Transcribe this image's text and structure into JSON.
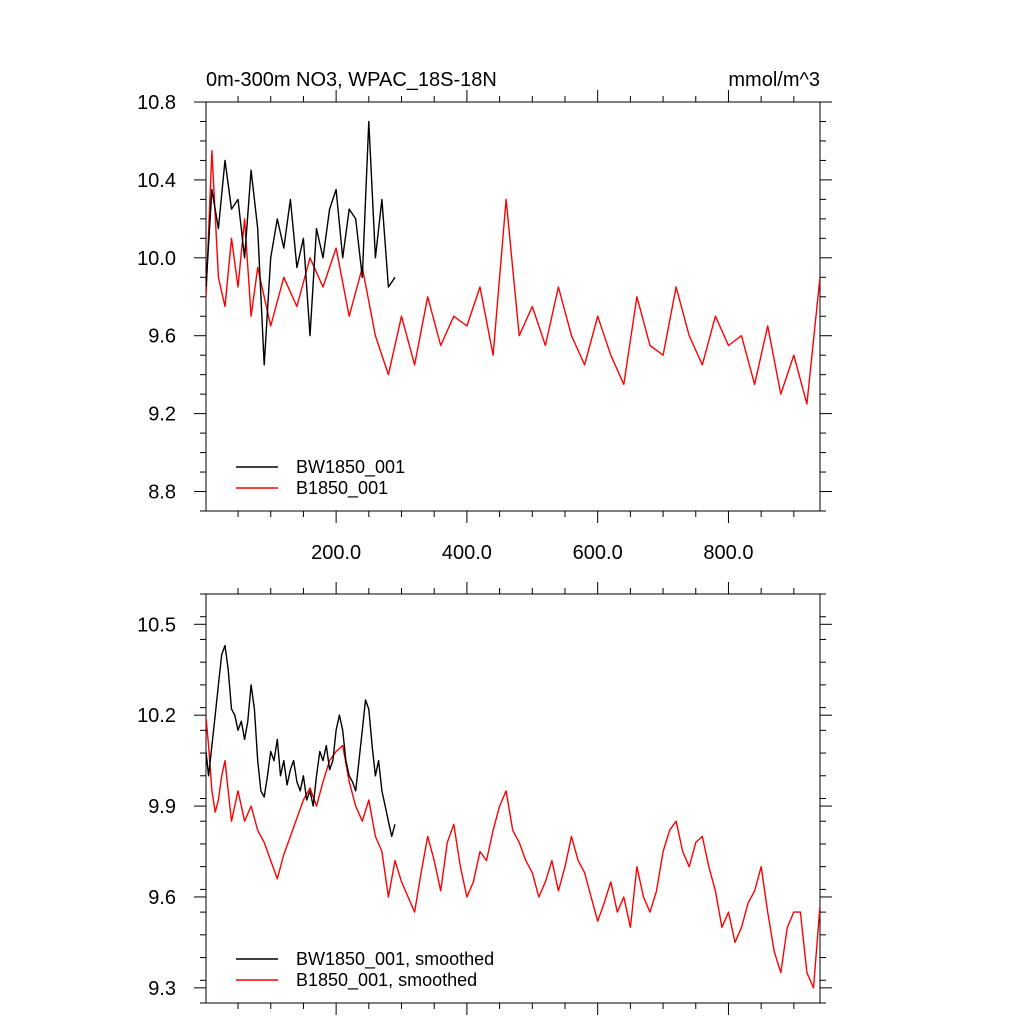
{
  "chart_data": [
    {
      "type": "line",
      "title": "0m-300m NO3, WPAC_18S-18N",
      "units": "mmol/m^3",
      "xlim": [
        1,
        940
      ],
      "ylim": [
        8.7,
        10.8
      ],
      "xticks": [
        200,
        400,
        600,
        800
      ],
      "xtick_labels": [
        "200.0",
        "400.0",
        "600.0",
        "800.0"
      ],
      "yticks": [
        8.8,
        9.2,
        9.6,
        10.0,
        10.4,
        10.8
      ],
      "ytick_labels": [
        "8.8",
        "9.2",
        "9.6",
        "10.0",
        "10.4",
        "10.8"
      ],
      "legend_position": "bottom-left",
      "series": [
        {
          "name": "BW1850_001",
          "color": "#000000",
          "x": [
            1,
            10,
            20,
            30,
            40,
            50,
            60,
            70,
            80,
            90,
            100,
            110,
            120,
            130,
            140,
            150,
            160,
            170,
            180,
            190,
            200,
            210,
            220,
            230,
            240,
            250,
            260,
            270,
            280,
            290
          ],
          "y": [
            9.85,
            10.35,
            10.15,
            10.5,
            10.25,
            10.3,
            10.0,
            10.45,
            10.15,
            9.45,
            10.0,
            10.2,
            10.05,
            10.3,
            9.95,
            10.1,
            9.6,
            10.15,
            10.0,
            10.25,
            10.35,
            10.0,
            10.25,
            10.2,
            9.9,
            10.7,
            10.0,
            10.3,
            9.85,
            9.9
          ]
        },
        {
          "name": "B1850_001",
          "color": "#ff0000",
          "x": [
            1,
            10,
            20,
            30,
            40,
            50,
            60,
            70,
            80,
            90,
            100,
            120,
            140,
            160,
            180,
            200,
            220,
            240,
            260,
            280,
            300,
            320,
            340,
            360,
            380,
            400,
            420,
            440,
            460,
            480,
            500,
            520,
            540,
            560,
            580,
            600,
            620,
            640,
            660,
            680,
            700,
            720,
            740,
            760,
            780,
            800,
            820,
            840,
            860,
            880,
            900,
            920,
            940
          ],
          "y": [
            9.8,
            10.55,
            9.9,
            9.75,
            10.1,
            9.85,
            10.2,
            9.7,
            9.95,
            9.8,
            9.65,
            9.9,
            9.75,
            10.0,
            9.85,
            10.05,
            9.7,
            9.95,
            9.6,
            9.4,
            9.7,
            9.45,
            9.8,
            9.55,
            9.7,
            9.65,
            9.85,
            9.5,
            10.3,
            9.6,
            9.75,
            9.55,
            9.85,
            9.6,
            9.45,
            9.7,
            9.5,
            9.35,
            9.8,
            9.55,
            9.5,
            9.85,
            9.6,
            9.45,
            9.7,
            9.55,
            9.6,
            9.35,
            9.65,
            9.3,
            9.5,
            9.25,
            9.9
          ]
        }
      ]
    },
    {
      "type": "line",
      "xlim": [
        1,
        940
      ],
      "ylim": [
        9.25,
        10.6
      ],
      "xticks": [
        200,
        400,
        600,
        800
      ],
      "yticks": [
        9.3,
        9.6,
        9.9,
        10.2,
        10.5
      ],
      "ytick_labels": [
        "9.3",
        "9.6",
        "9.9",
        "10.2",
        "10.5"
      ],
      "legend_position": "bottom-left",
      "series": [
        {
          "name": "BW1850_001, smoothed",
          "color": "#000000",
          "x": [
            1,
            5,
            10,
            15,
            20,
            25,
            30,
            35,
            40,
            45,
            50,
            55,
            60,
            65,
            70,
            75,
            80,
            85,
            90,
            95,
            100,
            105,
            110,
            115,
            120,
            125,
            130,
            135,
            140,
            145,
            150,
            155,
            160,
            165,
            170,
            175,
            180,
            185,
            190,
            195,
            200,
            205,
            210,
            215,
            220,
            225,
            230,
            235,
            240,
            245,
            250,
            255,
            260,
            265,
            270,
            275,
            280,
            285,
            290
          ],
          "y": [
            10.08,
            10.0,
            10.1,
            10.2,
            10.3,
            10.4,
            10.43,
            10.35,
            10.22,
            10.2,
            10.15,
            10.18,
            10.12,
            10.18,
            10.3,
            10.22,
            10.05,
            9.95,
            9.93,
            10.0,
            10.08,
            10.05,
            10.12,
            10.0,
            10.05,
            9.97,
            10.02,
            10.05,
            9.98,
            9.95,
            10.0,
            9.92,
            9.95,
            9.9,
            10.0,
            10.08,
            10.05,
            10.1,
            10.02,
            10.05,
            10.15,
            10.2,
            10.15,
            10.05,
            10.0,
            9.98,
            9.95,
            10.05,
            10.15,
            10.25,
            10.22,
            10.1,
            10.0,
            10.05,
            9.95,
            9.9,
            9.85,
            9.8,
            9.84
          ]
        },
        {
          "name": "B1850_001, smoothed",
          "color": "#ff0000",
          "x": [
            1,
            5,
            10,
            15,
            20,
            25,
            30,
            35,
            40,
            50,
            60,
            70,
            80,
            90,
            100,
            110,
            120,
            130,
            140,
            150,
            160,
            170,
            180,
            190,
            200,
            210,
            220,
            230,
            240,
            250,
            260,
            270,
            280,
            290,
            300,
            310,
            320,
            330,
            340,
            350,
            360,
            370,
            380,
            390,
            400,
            410,
            420,
            430,
            440,
            450,
            460,
            470,
            480,
            490,
            500,
            510,
            520,
            530,
            540,
            550,
            560,
            570,
            580,
            590,
            600,
            610,
            620,
            630,
            640,
            650,
            660,
            670,
            680,
            690,
            700,
            710,
            720,
            730,
            740,
            750,
            760,
            770,
            780,
            790,
            800,
            810,
            820,
            830,
            840,
            850,
            860,
            870,
            880,
            890,
            900,
            910,
            920,
            930,
            940
          ],
          "y": [
            10.19,
            10.1,
            9.95,
            9.88,
            9.92,
            10.0,
            10.05,
            9.95,
            9.85,
            9.95,
            9.85,
            9.9,
            9.82,
            9.78,
            9.72,
            9.66,
            9.74,
            9.8,
            9.86,
            9.92,
            9.96,
            9.9,
            9.98,
            10.05,
            10.08,
            10.1,
            9.98,
            9.9,
            9.85,
            9.92,
            9.8,
            9.75,
            9.6,
            9.72,
            9.65,
            9.6,
            9.55,
            9.68,
            9.8,
            9.72,
            9.62,
            9.78,
            9.84,
            9.7,
            9.6,
            9.65,
            9.75,
            9.72,
            9.82,
            9.9,
            9.95,
            9.82,
            9.78,
            9.72,
            9.68,
            9.6,
            9.65,
            9.72,
            9.62,
            9.7,
            9.8,
            9.72,
            9.68,
            9.6,
            9.52,
            9.58,
            9.65,
            9.55,
            9.6,
            9.5,
            9.7,
            9.6,
            9.55,
            9.62,
            9.75,
            9.82,
            9.85,
            9.75,
            9.7,
            9.78,
            9.8,
            9.7,
            9.62,
            9.5,
            9.55,
            9.45,
            9.5,
            9.58,
            9.62,
            9.7,
            9.55,
            9.42,
            9.35,
            9.5,
            9.55,
            9.55,
            9.35,
            9.3,
            9.57
          ]
        }
      ]
    }
  ]
}
